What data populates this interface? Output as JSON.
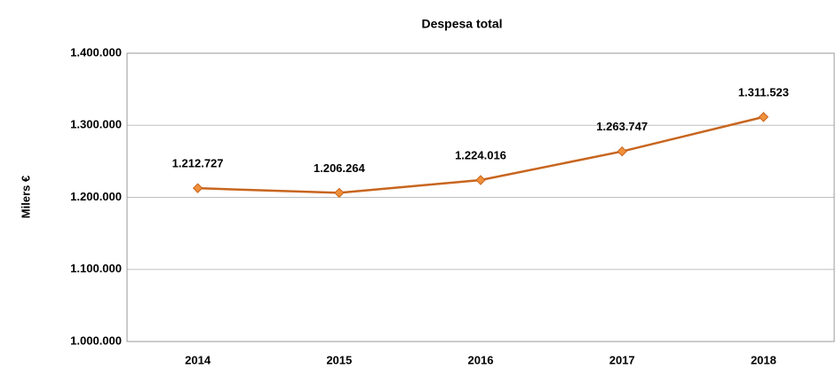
{
  "chart_data": {
    "type": "line",
    "title": "Despesa total",
    "ylabel": "Milers €",
    "categories": [
      "2014",
      "2015",
      "2016",
      "2017",
      "2018"
    ],
    "series": [
      {
        "name": "Despesa total",
        "color": "#c8651e",
        "marker_color": "#f0903a",
        "values": [
          1212727,
          1206264,
          1224016,
          1263747,
          1311523
        ],
        "value_labels": [
          "1.212.727",
          "1.206.264",
          "1.224.016",
          "1.263.747",
          "1.311.523"
        ]
      }
    ],
    "ylim": [
      1000000,
      1400000
    ],
    "yticks": [
      {
        "value": 1000000,
        "label": "1.000.000"
      },
      {
        "value": 1100000,
        "label": "1.100.000"
      },
      {
        "value": 1200000,
        "label": "1.200.000"
      },
      {
        "value": 1300000,
        "label": "1.300.000"
      },
      {
        "value": 1400000,
        "label": "1.400.000"
      }
    ],
    "grid": true
  }
}
